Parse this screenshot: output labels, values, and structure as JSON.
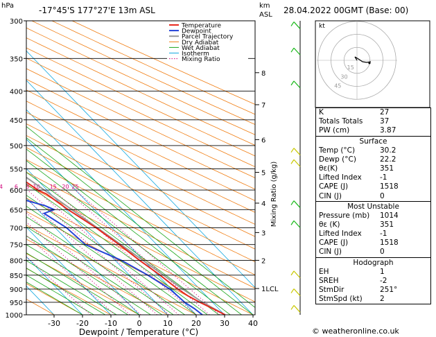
{
  "header": {
    "hpa_label": "hPa",
    "location": "-17°45'S  177°27'E  13m  ASL",
    "km_label": "km",
    "asl_label": "ASL",
    "datetime": "28.04.2022  00GMT  (Base: 00)"
  },
  "legend": [
    "Temperature",
    "Dewpoint",
    "Parcel Trajectory",
    "Dry Adiabat",
    "Wet Adiabat",
    "Isotherm",
    "Mixing Ratio"
  ],
  "colors": {
    "temperature": "#e8281e",
    "dewpoint": "#2444d8",
    "parcel": "#999999",
    "dry_adiabat": "#f07c10",
    "wet_adiabat": "#1aa61a",
    "isotherm": "#10a8e0",
    "mixing_ratio": "#d0007a"
  },
  "chart_data": {
    "type": "line",
    "title": "",
    "xlabel": "Dewpoint / Temperature (°C)",
    "ylabel": "",
    "right_axis_label": "Mixing Ratio (g/kg)",
    "x_ticks": [
      -30,
      -20,
      -10,
      0,
      10,
      20,
      30,
      40
    ],
    "pressure_levels": [
      300,
      350,
      400,
      450,
      500,
      550,
      600,
      650,
      700,
      750,
      800,
      850,
      900,
      950,
      1000
    ],
    "km_ticks": [
      {
        "label": "8",
        "p": 371
      },
      {
        "label": "7",
        "p": 423
      },
      {
        "label": "6",
        "p": 488
      },
      {
        "label": "5",
        "p": 558
      },
      {
        "label": "4",
        "p": 633
      },
      {
        "label": "3",
        "p": 714
      },
      {
        "label": "2",
        "p": 800
      },
      {
        "label": "1LCL",
        "p": 898
      }
    ],
    "mixing_ratio_labels": [
      "1",
      "2",
      "3",
      "4",
      "6",
      "8",
      "10",
      "15",
      "20",
      "25"
    ],
    "mixing_ratio_values": [
      1,
      2,
      3,
      4,
      6,
      8,
      10,
      15,
      20,
      25
    ],
    "series": [
      {
        "name": "Temperature",
        "points": [
          [
            1000,
            30.2
          ],
          [
            975,
            28
          ],
          [
            950,
            25.5
          ],
          [
            925,
            23.5
          ],
          [
            900,
            22.3
          ],
          [
            850,
            20.8
          ],
          [
            800,
            18.6
          ],
          [
            750,
            16.8
          ],
          [
            700,
            14.4
          ],
          [
            650,
            10.7
          ],
          [
            610,
            8.4
          ],
          [
            600,
            6.8
          ],
          [
            550,
            3
          ],
          [
            500,
            -1.5
          ],
          [
            450,
            -7
          ],
          [
            400,
            -13
          ],
          [
            350,
            -20.3
          ],
          [
            300,
            -30
          ]
        ]
      },
      {
        "name": "Dewpoint",
        "points": [
          [
            1000,
            22.2
          ],
          [
            975,
            21.5
          ],
          [
            950,
            20.2
          ],
          [
            900,
            19.5
          ],
          [
            850,
            16.5
          ],
          [
            800,
            12.2
          ],
          [
            750,
            4.9
          ],
          [
            700,
            4
          ],
          [
            660,
            1
          ],
          [
            650,
            5.8
          ],
          [
            640,
            4
          ],
          [
            620,
            -3
          ],
          [
            610,
            -27
          ],
          [
            590,
            -30
          ],
          [
            550,
            -45
          ],
          [
            540,
            -12
          ],
          [
            530,
            -42
          ],
          [
            500,
            -29
          ],
          [
            450,
            -30
          ],
          [
            400,
            -42
          ],
          [
            350,
            -44
          ],
          [
            300,
            -52
          ]
        ]
      },
      {
        "name": "Parcel Trajectory",
        "points": [
          [
            1000,
            30.2
          ],
          [
            950,
            26.5
          ],
          [
            900,
            24
          ],
          [
            850,
            22
          ],
          [
            800,
            19.8
          ],
          [
            750,
            17.4
          ],
          [
            700,
            14.8
          ],
          [
            650,
            12
          ],
          [
            600,
            9
          ],
          [
            550,
            5.6
          ],
          [
            500,
            1.6
          ],
          [
            450,
            -3.2
          ],
          [
            400,
            -9
          ],
          [
            350,
            -16
          ],
          [
            300,
            -26
          ]
        ]
      }
    ],
    "hodograph": {
      "ring_labels": [
        "15",
        "30",
        "45"
      ],
      "unit": "kt"
    }
  },
  "indices": {
    "top": [
      [
        "K",
        "27"
      ],
      [
        "Totals Totals",
        "37"
      ],
      [
        "PW (cm)",
        "3.87"
      ]
    ],
    "surface_title": "Surface",
    "surface": [
      [
        "Temp (°C)",
        "30.2"
      ],
      [
        "Dewp (°C)",
        "22.2"
      ],
      [
        "θε(K)",
        "351"
      ],
      [
        "Lifted Index",
        "-1"
      ],
      [
        "CAPE (J)",
        "1518"
      ],
      [
        "CIN (J)",
        "0"
      ]
    ],
    "unstable_title": "Most Unstable",
    "unstable": [
      [
        "Pressure (mb)",
        "1014"
      ],
      [
        "θε (K)",
        "351"
      ],
      [
        "Lifted Index",
        "-1"
      ],
      [
        "CAPE (J)",
        "1518"
      ],
      [
        "CIN (J)",
        "0"
      ]
    ],
    "hodo_title": "Hodograph",
    "hodo": [
      [
        "EH",
        "1"
      ],
      [
        "SREH",
        "-2"
      ],
      [
        "StmDir",
        "251°"
      ],
      [
        "StmSpd (kt)",
        "2"
      ]
    ]
  },
  "footer": "© weatheronline.co.uk"
}
